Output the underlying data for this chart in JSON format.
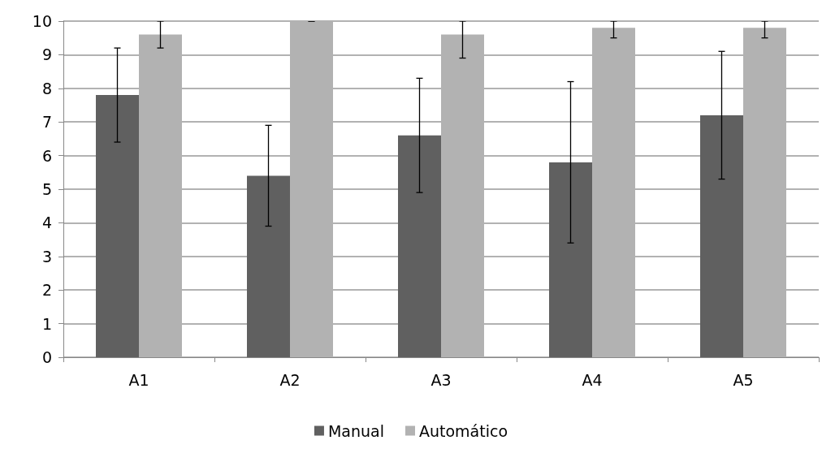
{
  "chart_data": {
    "type": "bar",
    "categories": [
      "A1",
      "A2",
      "A3",
      "A4",
      "A5"
    ],
    "series": [
      {
        "name": "Manual",
        "color": "#606060",
        "values": [
          7.8,
          5.4,
          6.6,
          5.8,
          7.2
        ],
        "errors": [
          [
            6.4,
            9.2
          ],
          [
            3.9,
            6.9
          ],
          [
            4.9,
            8.3
          ],
          [
            3.4,
            8.2
          ],
          [
            5.3,
            9.1
          ]
        ]
      },
      {
        "name": "Automático",
        "color": "#b2b2b2",
        "values": [
          9.6,
          10,
          9.6,
          9.8,
          9.8
        ],
        "errors": [
          [
            9.2,
            10
          ],
          [
            10,
            10
          ],
          [
            8.9,
            10
          ],
          [
            9.5,
            10
          ],
          [
            9.5,
            10
          ]
        ]
      }
    ],
    "ylim": [
      0,
      10
    ],
    "yticks": [
      0,
      1,
      2,
      3,
      4,
      5,
      6,
      7,
      8,
      9,
      10
    ],
    "grid": "y",
    "legend": "bottom"
  }
}
